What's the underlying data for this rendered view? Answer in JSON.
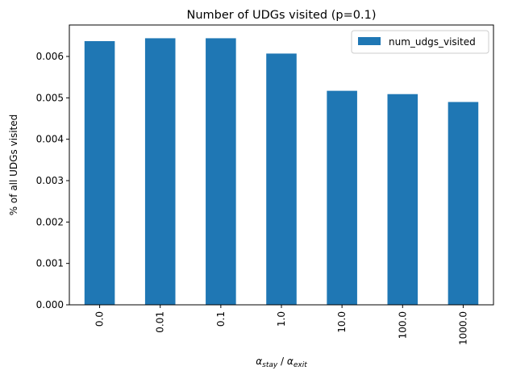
{
  "chart_data": {
    "type": "bar",
    "title": "Number of UDGs visited (p=0.1)",
    "categories": [
      "0.0",
      "0.01",
      "0.1",
      "1.0",
      "10.0",
      "100.0",
      "1000.0"
    ],
    "series": [
      {
        "name": "num_udgs_visited",
        "values": [
          0.00637,
          0.00644,
          0.00644,
          0.00607,
          0.00517,
          0.00509,
          0.0049
        ],
        "color": "#1f77b4"
      }
    ],
    "ylabel": "% of all UDGs visited",
    "xlabel_parts": {
      "alpha": "α",
      "stay": "stay",
      "separator": " / ",
      "exit": "exit"
    },
    "ylim": [
      0,
      0.00676
    ],
    "yticks": [
      0.0,
      0.001,
      0.002,
      0.003,
      0.004,
      0.005,
      0.006
    ],
    "ytick_labels": [
      "0.000",
      "0.001",
      "0.002",
      "0.003",
      "0.004",
      "0.005",
      "0.006"
    ],
    "grid": false,
    "legend_position": "top-right"
  }
}
